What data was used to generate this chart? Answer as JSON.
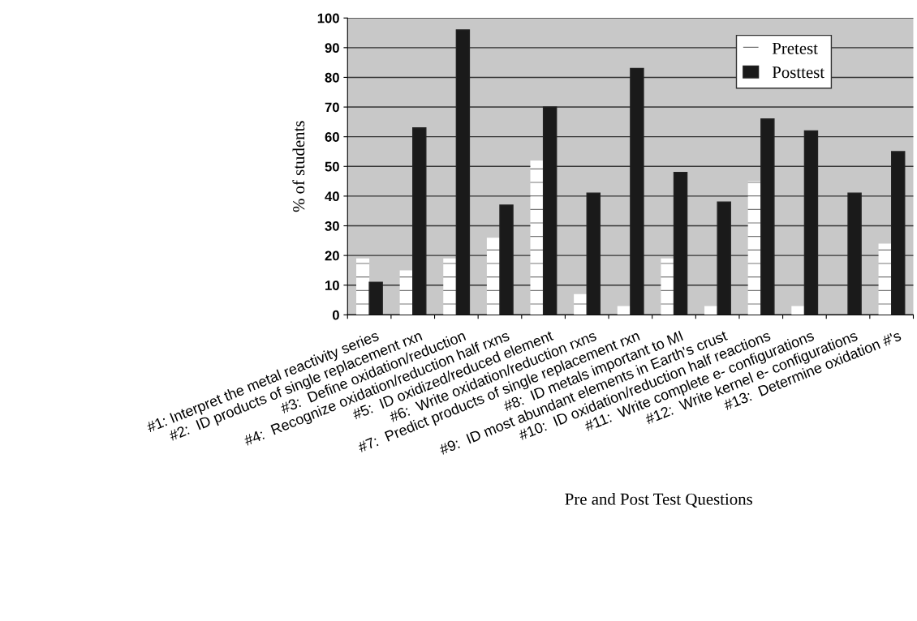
{
  "chart_data": {
    "type": "bar",
    "xlabel": "Pre and Post Test Questions",
    "ylabel": "% of students",
    "categories": [
      "#1: Interpret the metal reactivity series",
      "#2:  ID products of single replacement rxn",
      "#3:  Define oxidation/reduction",
      "#4:  Recognize oxidation/reduction half rxns",
      "#5:  ID oxidized/reduced element",
      "#6:  Write oxidation/reduction rxns",
      "#7:  Predict products of single replacement rxn",
      "#8:  ID metals important to MI",
      "#9:  ID most abundant elements in Earth's crust",
      "#10:  ID oxidation/reduction half reactions",
      "#11:  Write complete e- configurations",
      "#12:  Write kernel e- configurations",
      "#13:  Determine oxidation #'s"
    ],
    "series": [
      {
        "name": "Pretest",
        "color": "#ffffff",
        "values": [
          19,
          15,
          19,
          26,
          52,
          7,
          3,
          19,
          3,
          45,
          3,
          0,
          24
        ]
      },
      {
        "name": "Posttest",
        "color": "#1a1a1a",
        "values": [
          11,
          63,
          96,
          37,
          70,
          41,
          83,
          48,
          38,
          66,
          62,
          41,
          55
        ]
      }
    ],
    "ylim": [
      0,
      100
    ],
    "yticks": [
      0,
      10,
      20,
      30,
      40,
      50,
      60,
      70,
      80,
      90,
      100
    ],
    "grid": "y",
    "legend": "top right"
  }
}
